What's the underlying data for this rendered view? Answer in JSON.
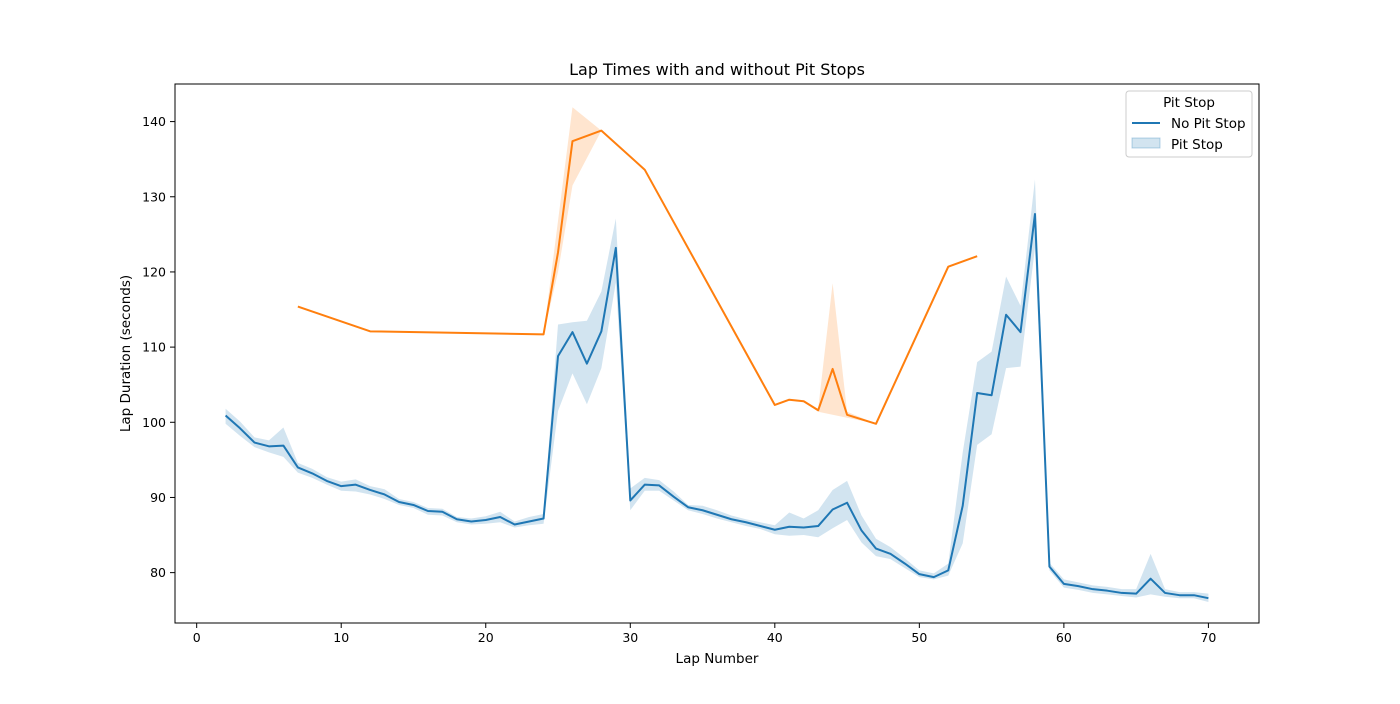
{
  "chart_data": {
    "type": "line",
    "title": "Lap Times with and without Pit Stops",
    "xlabel": "Lap Number",
    "ylabel": "Lap Duration (seconds)",
    "xlim": [
      -1.5,
      73.5
    ],
    "ylim": [
      73.3,
      145.0
    ],
    "xticks": [
      0,
      10,
      20,
      30,
      40,
      50,
      60,
      70
    ],
    "yticks": [
      80,
      90,
      100,
      110,
      120,
      130,
      140
    ],
    "grid": false,
    "legend": {
      "title": "Pit Stop",
      "placement": "top-right",
      "entries": [
        {
          "label": "No Pit Stop",
          "style": "line",
          "color": "#1f77b4"
        },
        {
          "label": "Pit Stop",
          "style": "band",
          "color": "#1f77b4"
        }
      ]
    },
    "series": [
      {
        "color": "#1f77b4",
        "points": [
          [
            2,
            100.9,
            99.8,
            101.8
          ],
          [
            3,
            99.2,
            98.2,
            100.1
          ],
          [
            4,
            97.3,
            96.7,
            98.0
          ],
          [
            5,
            96.8,
            96.0,
            97.6
          ],
          [
            6,
            96.9,
            95.4,
            99.3
          ],
          [
            7,
            94.0,
            93.3,
            94.6
          ],
          [
            8,
            93.2,
            92.6,
            93.8
          ],
          [
            9,
            92.2,
            91.7,
            92.7
          ],
          [
            10,
            91.5,
            90.9,
            92.1
          ],
          [
            11,
            91.7,
            90.8,
            92.4
          ],
          [
            12,
            91.0,
            90.4,
            91.5
          ],
          [
            13,
            90.4,
            89.8,
            91.1
          ],
          [
            14,
            89.4,
            89.0,
            89.8
          ],
          [
            15,
            89.0,
            88.6,
            89.4
          ],
          [
            16,
            88.2,
            87.7,
            88.6
          ],
          [
            17,
            88.1,
            87.6,
            88.5
          ],
          [
            18,
            87.1,
            86.7,
            87.4
          ],
          [
            19,
            86.8,
            86.4,
            87.2
          ],
          [
            20,
            87.0,
            86.5,
            87.5
          ],
          [
            21,
            87.4,
            86.7,
            88.1
          ],
          [
            22,
            86.4,
            86.0,
            86.8
          ],
          [
            23,
            86.8,
            86.3,
            87.4
          ],
          [
            24,
            87.2,
            86.5,
            87.8
          ],
          [
            25,
            108.8,
            101.5,
            113.0
          ],
          [
            26,
            112.0,
            106.5,
            113.3
          ],
          [
            27,
            107.8,
            102.4,
            113.5
          ],
          [
            28,
            112.1,
            107.2,
            117.4
          ],
          [
            29,
            123.2,
            118.6,
            127.1
          ],
          [
            30,
            89.6,
            88.3,
            91.2
          ],
          [
            31,
            91.7,
            90.9,
            92.6
          ],
          [
            32,
            91.6,
            90.9,
            92.3
          ],
          [
            33,
            90.1,
            89.6,
            90.8
          ],
          [
            34,
            88.7,
            88.3,
            89.0
          ],
          [
            35,
            88.3,
            87.8,
            88.9
          ],
          [
            36,
            87.7,
            87.2,
            88.3
          ],
          [
            37,
            87.1,
            86.7,
            87.6
          ],
          [
            38,
            86.7,
            86.2,
            87.1
          ],
          [
            39,
            86.2,
            85.8,
            86.7
          ],
          [
            40,
            85.7,
            85.1,
            86.3
          ],
          [
            41,
            86.1,
            84.9,
            88.0
          ],
          [
            42,
            86.0,
            85.0,
            87.2
          ],
          [
            43,
            86.2,
            84.7,
            88.3
          ],
          [
            44,
            88.4,
            85.9,
            91.0
          ],
          [
            45,
            89.3,
            87.0,
            92.2
          ],
          [
            46,
            85.6,
            84.0,
            87.6
          ],
          [
            47,
            83.2,
            82.2,
            84.5
          ],
          [
            48,
            82.5,
            81.8,
            83.4
          ],
          [
            49,
            81.2,
            80.6,
            81.9
          ],
          [
            50,
            79.8,
            79.4,
            80.3
          ],
          [
            51,
            79.4,
            79.1,
            79.9
          ],
          [
            52,
            80.3,
            79.6,
            81.2
          ],
          [
            53,
            88.9,
            83.9,
            96.0
          ],
          [
            54,
            103.9,
            97.0,
            108.0
          ],
          [
            55,
            103.6,
            98.4,
            109.4
          ],
          [
            56,
            114.3,
            107.2,
            119.4
          ],
          [
            57,
            112.0,
            107.4,
            115.5
          ],
          [
            58,
            127.7,
            123.2,
            132.3
          ],
          [
            59,
            80.8,
            80.3,
            81.3
          ],
          [
            60,
            78.5,
            78.0,
            79.1
          ],
          [
            61,
            78.2,
            77.7,
            78.7
          ],
          [
            62,
            77.8,
            77.3,
            78.3
          ],
          [
            63,
            77.6,
            77.1,
            78.1
          ],
          [
            64,
            77.3,
            76.9,
            77.8
          ],
          [
            65,
            77.2,
            76.7,
            77.8
          ],
          [
            66,
            79.2,
            77.1,
            82.5
          ],
          [
            67,
            77.3,
            76.8,
            77.8
          ],
          [
            68,
            77.0,
            76.6,
            77.4
          ],
          [
            69,
            77.0,
            76.6,
            77.4
          ],
          [
            70,
            76.6,
            76.1,
            77.2
          ]
        ]
      },
      {
        "color": "#ff7f0e",
        "points": [
          [
            7,
            115.4,
            115.4,
            115.4
          ],
          [
            12,
            112.1,
            112.1,
            112.1
          ],
          [
            24,
            111.7,
            111.7,
            111.7
          ],
          [
            25,
            122.6,
            120.0,
            126.8
          ],
          [
            26,
            137.4,
            131.5,
            141.9
          ],
          [
            28,
            138.8,
            138.8,
            138.8
          ],
          [
            31,
            133.6,
            133.6,
            133.6
          ],
          [
            40,
            102.3,
            102.3,
            102.3
          ],
          [
            41,
            103.0,
            103.0,
            103.0
          ],
          [
            42,
            102.8,
            102.8,
            102.8
          ],
          [
            43,
            101.6,
            101.4,
            101.8
          ],
          [
            44,
            107.1,
            101.0,
            118.5
          ],
          [
            45,
            101.0,
            100.6,
            101.4
          ],
          [
            47,
            99.8,
            99.8,
            99.8
          ],
          [
            52,
            120.7,
            120.7,
            120.7
          ],
          [
            54,
            122.1,
            122.1,
            122.1
          ]
        ]
      }
    ]
  }
}
